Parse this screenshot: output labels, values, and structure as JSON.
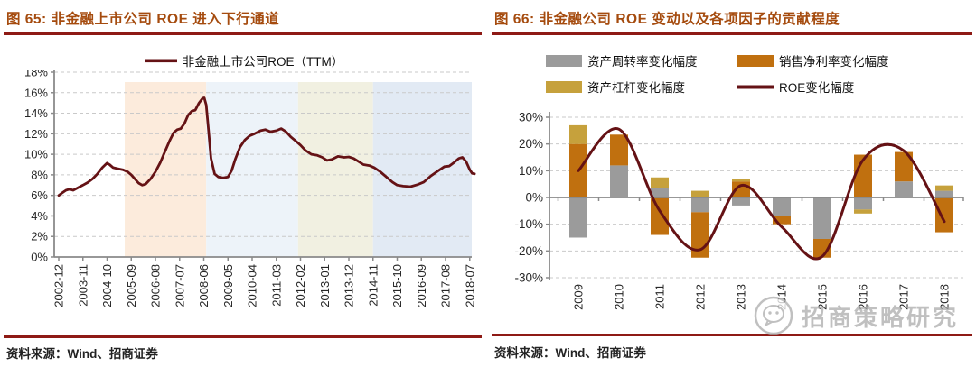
{
  "figure_65": {
    "title": "图 65:  非金融上市公司 ROE 进入下行通道",
    "source": "资料来源：Wind、招商证券"
  },
  "figure_66": {
    "title": "图 66:  非金融公司 ROE 变动以及各项因子的贡献程度",
    "source": "资料来源：Wind、招商证券"
  },
  "watermark": {
    "icon": "wechat-logo",
    "text": "招商策略研究"
  },
  "colors": {
    "title": "#A54B0E",
    "rule": "#8E1A15",
    "roe_line": "#651215",
    "bar_turnover": "#9B9B9B",
    "bar_margin": "#C0700F",
    "bar_leverage": "#C6A13C",
    "grid": "#C9C9C9",
    "axis": "#8A8A8A",
    "tick_text": "#262626",
    "band_peach": "#FCEBDC",
    "band_blue": "#EDF3F9",
    "band_beige": "#F1F0E1",
    "band_blue2": "#E2EAF4"
  },
  "chart_data": [
    {
      "type": "line",
      "title": "非金融上市公司 ROE 进入下行通道",
      "xlabel": "",
      "ylabel": "",
      "unit": "%",
      "ylim": [
        0,
        18
      ],
      "ytick_step": 2,
      "ytick_labels": [
        "0%",
        "2%",
        "4%",
        "6%",
        "8%",
        "10%",
        "12%",
        "14%",
        "16%",
        "18%"
      ],
      "x_tick_labels": [
        "2002-12",
        "2003-11",
        "2004-10",
        "2005-09",
        "2006-08",
        "2007-07",
        "2008-06",
        "2009-05",
        "2010-04",
        "2011-03",
        "2012-02",
        "2013-01",
        "2013-12",
        "2014-11",
        "2015-10",
        "2016-09",
        "2017-08",
        "2018-07"
      ],
      "grid": "dashed",
      "legend_position": "top",
      "bands": [
        {
          "from": 2.73,
          "to": 6.1,
          "color": "#FCEBDC"
        },
        {
          "from": 6.1,
          "to": 9.9,
          "color": "#EDF3F9"
        },
        {
          "from": 9.9,
          "to": 13.0,
          "color": "#F1F0E1"
        },
        {
          "from": 13.0,
          "to": 17.3,
          "color": "#E2EAF4"
        }
      ],
      "series": [
        {
          "name": "非金融上市公司ROE（TTM）",
          "color": "#651215",
          "points": [
            [
              0,
              6.0
            ],
            [
              0.15,
              6.25
            ],
            [
              0.3,
              6.5
            ],
            [
              0.45,
              6.6
            ],
            [
              0.6,
              6.5
            ],
            [
              0.8,
              6.75
            ],
            [
              1.0,
              7.0
            ],
            [
              1.2,
              7.25
            ],
            [
              1.4,
              7.6
            ],
            [
              1.6,
              8.1
            ],
            [
              1.8,
              8.7
            ],
            [
              2.0,
              9.15
            ],
            [
              2.1,
              9.0
            ],
            [
              2.25,
              8.7
            ],
            [
              2.45,
              8.6
            ],
            [
              2.65,
              8.5
            ],
            [
              2.85,
              8.3
            ],
            [
              3.0,
              8.0
            ],
            [
              3.15,
              7.6
            ],
            [
              3.3,
              7.2
            ],
            [
              3.45,
              7.0
            ],
            [
              3.6,
              7.1
            ],
            [
              3.8,
              7.6
            ],
            [
              4.0,
              8.3
            ],
            [
              4.2,
              9.2
            ],
            [
              4.4,
              10.3
            ],
            [
              4.6,
              11.4
            ],
            [
              4.75,
              12.1
            ],
            [
              4.9,
              12.4
            ],
            [
              5.05,
              12.5
            ],
            [
              5.2,
              13.0
            ],
            [
              5.35,
              13.8
            ],
            [
              5.5,
              14.2
            ],
            [
              5.65,
              14.3
            ],
            [
              5.8,
              15.0
            ],
            [
              5.95,
              15.45
            ],
            [
              6.02,
              15.5
            ],
            [
              6.1,
              14.8
            ],
            [
              6.2,
              12.3
            ],
            [
              6.3,
              9.6
            ],
            [
              6.45,
              8.1
            ],
            [
              6.6,
              7.8
            ],
            [
              6.8,
              7.7
            ],
            [
              7.0,
              7.8
            ],
            [
              7.15,
              8.4
            ],
            [
              7.3,
              9.5
            ],
            [
              7.5,
              10.7
            ],
            [
              7.7,
              11.4
            ],
            [
              7.9,
              11.8
            ],
            [
              8.1,
              12.0
            ],
            [
              8.35,
              12.3
            ],
            [
              8.55,
              12.4
            ],
            [
              8.75,
              12.2
            ],
            [
              9.0,
              12.3
            ],
            [
              9.2,
              12.5
            ],
            [
              9.4,
              12.2
            ],
            [
              9.6,
              11.7
            ],
            [
              9.8,
              11.3
            ],
            [
              10.0,
              10.9
            ],
            [
              10.2,
              10.4
            ],
            [
              10.45,
              10.0
            ],
            [
              10.7,
              9.9
            ],
            [
              10.9,
              9.7
            ],
            [
              11.1,
              9.4
            ],
            [
              11.3,
              9.5
            ],
            [
              11.55,
              9.8
            ],
            [
              11.8,
              9.7
            ],
            [
              12.0,
              9.75
            ],
            [
              12.2,
              9.6
            ],
            [
              12.4,
              9.3
            ],
            [
              12.6,
              9.0
            ],
            [
              12.85,
              8.9
            ],
            [
              13.05,
              8.7
            ],
            [
              13.3,
              8.3
            ],
            [
              13.55,
              7.8
            ],
            [
              13.8,
              7.3
            ],
            [
              14.0,
              7.0
            ],
            [
              14.25,
              6.9
            ],
            [
              14.55,
              6.85
            ],
            [
              14.85,
              7.05
            ],
            [
              15.1,
              7.3
            ],
            [
              15.4,
              7.9
            ],
            [
              15.7,
              8.4
            ],
            [
              15.95,
              8.8
            ],
            [
              16.15,
              8.85
            ],
            [
              16.35,
              9.2
            ],
            [
              16.55,
              9.6
            ],
            [
              16.7,
              9.7
            ],
            [
              16.85,
              9.3
            ],
            [
              17.0,
              8.5
            ],
            [
              17.1,
              8.15
            ],
            [
              17.2,
              8.1
            ]
          ]
        }
      ]
    },
    {
      "type": "bar-line",
      "categories": [
        "2009",
        "2010",
        "2011",
        "2012",
        "2013",
        "2014",
        "2015",
        "2016",
        "2017",
        "2018"
      ],
      "ylim": [
        -30,
        30
      ],
      "ytick_step": 10,
      "ytick_labels": [
        "-30%",
        "-20%",
        "-10%",
        "0%",
        "10%",
        "20%",
        "30%"
      ],
      "grid": "dashed",
      "legend_position": "top",
      "series": [
        {
          "name": "资产周转率变化幅度",
          "type": "bar",
          "color": "#9B9B9B",
          "values": [
            -15,
            12,
            3.5,
            -5.5,
            -3,
            -7,
            -15.5,
            -4.5,
            6,
            2.5
          ]
        },
        {
          "name": "销售净利率变化幅度",
          "type": "bar",
          "color": "#C0700F",
          "values": [
            20,
            11.5,
            -14,
            -17,
            6,
            -3,
            -7,
            16,
            11,
            -13
          ]
        },
        {
          "name": "资产杠杆变化幅度",
          "type": "bar",
          "color": "#C6A13C",
          "values": [
            7,
            0,
            4,
            2.5,
            1,
            0,
            0,
            -1.5,
            0,
            2
          ]
        },
        {
          "name": "ROE变化幅度",
          "type": "line",
          "color": "#651215",
          "values": [
            10,
            25.5,
            -5,
            -19.5,
            4.5,
            -11,
            -22,
            14,
            17.5,
            -9
          ]
        }
      ]
    }
  ]
}
